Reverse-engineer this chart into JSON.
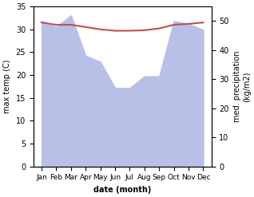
{
  "months": [
    "Jan",
    "Feb",
    "Mar",
    "Apr",
    "May",
    "Jun",
    "Jul",
    "Aug",
    "Sep",
    "Oct",
    "Nov",
    "Dec"
  ],
  "max_temp": [
    31.5,
    31.0,
    31.0,
    30.5,
    30.0,
    29.7,
    29.7,
    29.8,
    30.2,
    31.0,
    31.2,
    31.5
  ],
  "precipitation": [
    50,
    48,
    52,
    38,
    36,
    27,
    27,
    31,
    31,
    50,
    49,
    47
  ],
  "precip_color": "#b8c0e8",
  "temp_color": "#c0504d",
  "temp_ylim": [
    0,
    35
  ],
  "precip_ylim": [
    0,
    55
  ],
  "temp_yticks": [
    0,
    5,
    10,
    15,
    20,
    25,
    30,
    35
  ],
  "precip_yticks": [
    0,
    10,
    20,
    30,
    40,
    50
  ],
  "xlabel": "date (month)",
  "ylabel_left": "max temp (C)",
  "ylabel_right": "med. precipitation\n(kg/m2)",
  "background_color": "#ffffff"
}
